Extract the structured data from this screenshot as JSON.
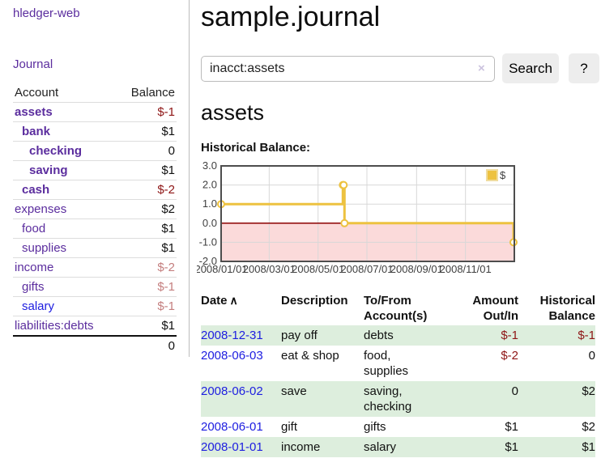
{
  "app": {
    "brand": "hledger-web"
  },
  "sidebar": {
    "nav_journal": "Journal",
    "accounts": {
      "header_account": "Account",
      "header_balance": "Balance",
      "rows": [
        {
          "name": "assets",
          "balance": "$-1",
          "level": 1,
          "bold": true,
          "name_color": "purple",
          "balance_tone": "negative-strong"
        },
        {
          "name": "bank",
          "balance": "$1",
          "level": 2,
          "bold": true,
          "name_color": "purple",
          "balance_tone": "normal"
        },
        {
          "name": "checking",
          "balance": "0",
          "level": 3,
          "bold": true,
          "name_color": "purple",
          "balance_tone": "normal"
        },
        {
          "name": "saving",
          "balance": "$1",
          "level": 3,
          "bold": true,
          "name_color": "purple",
          "balance_tone": "normal"
        },
        {
          "name": "cash",
          "balance": "$-2",
          "level": 2,
          "bold": true,
          "name_color": "purple",
          "balance_tone": "negative-strong"
        },
        {
          "name": "expenses",
          "balance": "$2",
          "level": 1,
          "bold": false,
          "name_color": "purple",
          "balance_tone": "normal"
        },
        {
          "name": "food",
          "balance": "$1",
          "level": 2,
          "bold": false,
          "name_color": "purple",
          "balance_tone": "normal"
        },
        {
          "name": "supplies",
          "balance": "$1",
          "level": 2,
          "bold": false,
          "name_color": "purple",
          "balance_tone": "normal"
        },
        {
          "name": "income",
          "balance": "$-2",
          "level": 1,
          "bold": false,
          "name_color": "purple",
          "balance_tone": "negative-soft"
        },
        {
          "name": "gifts",
          "balance": "$-1",
          "level": 2,
          "bold": false,
          "name_color": "purple",
          "balance_tone": "negative-soft"
        },
        {
          "name": "salary",
          "balance": "$-1",
          "level": 2,
          "bold": false,
          "name_color": "blue",
          "balance_tone": "negative-soft"
        },
        {
          "name": "liabilities:debts",
          "balance": "$1",
          "level": 1,
          "bold": false,
          "name_color": "purple",
          "balance_tone": "normal"
        }
      ],
      "total": "0"
    }
  },
  "main": {
    "title": "sample.journal",
    "search": {
      "value": "inacct:assets",
      "clear_label": "×",
      "search_button": "Search",
      "help_button": "?"
    },
    "account_heading": "assets",
    "chart_heading": "Historical Balance:"
  },
  "chart_data": {
    "type": "line",
    "step": true,
    "title": "Historical Balance:",
    "series": [
      {
        "name": "$",
        "points": [
          {
            "x": "2008/01/01",
            "y": 1
          },
          {
            "x": "2008/06/01",
            "y": 2
          },
          {
            "x": "2008/06/02",
            "y": 2
          },
          {
            "x": "2008/06/03",
            "y": 0
          },
          {
            "x": "2008/12/31",
            "y": -1
          }
        ]
      }
    ],
    "x_range": [
      "2008/01/01",
      "2009/01/01"
    ],
    "ylim": [
      -2,
      3
    ],
    "yticks": [
      "3.0",
      "2.0",
      "1.0",
      "0.0",
      "-1.0",
      "-2.0"
    ],
    "xticks": [
      "2008/01/01",
      "2008/03/01",
      "2008/05/01",
      "2008/07/01",
      "2008/09/01",
      "2008/11/01"
    ],
    "legend": {
      "label": "$",
      "position": "top-right"
    },
    "grid": true,
    "colors": {
      "line": "#edc240",
      "marker_fill": "#ffffff",
      "negative_fill": "#fbdada",
      "zero_line": "#8b0000",
      "grid": "#d8d8d8",
      "border": "#4d4d4d",
      "tick_text": "#3f3f3f",
      "legend_text": "#3f3f3f",
      "legend_swatch_border": "#f0dc9e"
    }
  },
  "register": {
    "headers": {
      "date": "Date",
      "sort_icon": "∧",
      "description": "Description",
      "account": "To/From Account(s)",
      "amount": "Amount Out/In",
      "balance": "Historical Balance"
    },
    "rows": [
      {
        "date": "2008-12-31",
        "description": "pay off",
        "accounts": "debts",
        "amount": "$-1",
        "balance": "$-1",
        "shaded": true,
        "amount_negative": true,
        "balance_negative": true
      },
      {
        "date": "2008-06-03",
        "description": "eat & shop",
        "accounts": "food, supplies",
        "amount": "$-2",
        "balance": "0",
        "shaded": false,
        "amount_negative": true,
        "balance_negative": false
      },
      {
        "date": "2008-06-02",
        "description": "save",
        "accounts": "saving, checking",
        "amount": "0",
        "balance": "$2",
        "shaded": true,
        "amount_negative": false,
        "balance_negative": false
      },
      {
        "date": "2008-06-01",
        "description": "gift",
        "accounts": "gifts",
        "amount": "$1",
        "balance": "$2",
        "shaded": false,
        "amount_negative": false,
        "balance_negative": false
      },
      {
        "date": "2008-01-01",
        "description": "income",
        "accounts": "salary",
        "amount": "$1",
        "balance": "$1",
        "shaded": true,
        "amount_negative": false,
        "balance_negative": false
      }
    ]
  },
  "colors": {
    "purple_link": "#5b2d9e",
    "blue_link": "#1d1de0",
    "negative_strong": "#8e1515",
    "negative_soft": "#c47e7e",
    "row_highlight": "#ddeedd",
    "button_bg": "#ededed",
    "divider": "#bdbdbd",
    "series_gold": "#edc240"
  }
}
